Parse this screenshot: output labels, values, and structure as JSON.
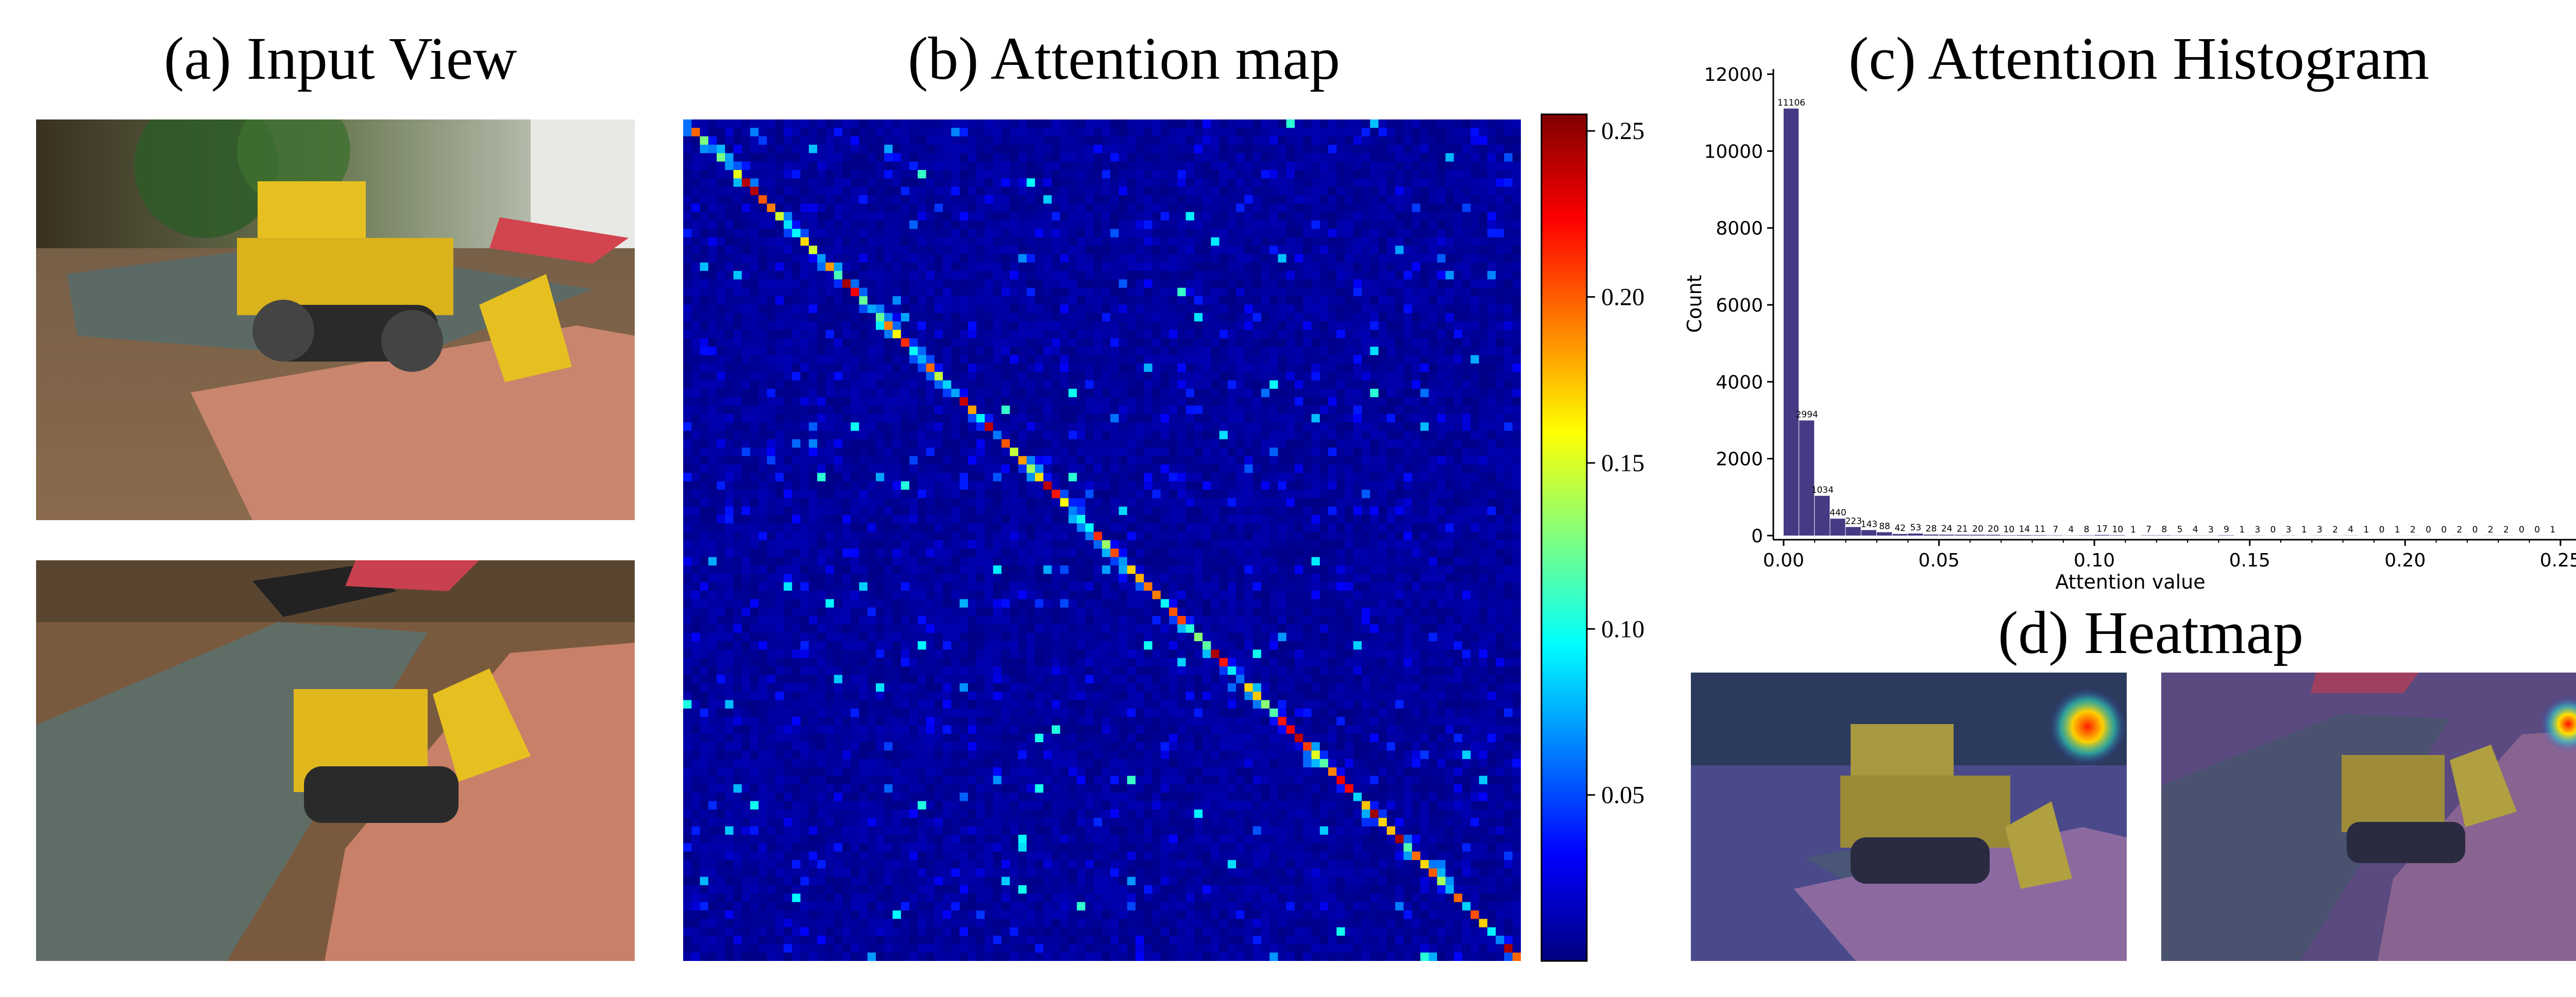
{
  "panels": {
    "a_title": "(a) Input View",
    "b_title": "(b) Attention map",
    "c_title": "(c) Attention Histogram",
    "d_title": "(d) Heatmap"
  },
  "images": {
    "input_view_1": "lego-bulldozer-on-table-side-view",
    "input_view_2": "lego-bulldozer-on-table-top-view",
    "heatmap_1": "heatmap-overlay-view-1",
    "heatmap_2": "heatmap-overlay-view-2"
  },
  "colormap": "jet",
  "chart_data": [
    {
      "type": "heatmap",
      "title": "(b) Attention map",
      "colorbar_ticks": [
        "0.05",
        "0.10",
        "0.15",
        "0.20",
        "0.25"
      ],
      "colorbar_range": [
        0,
        0.255
      ],
      "grid_size": 100,
      "diagonal": "strong",
      "colormap": "jet"
    },
    {
      "type": "bar",
      "title": "(c) Attention Histogram",
      "xlabel": "Attention value",
      "ylabel": "Count",
      "xlim": [
        0.0,
        0.255
      ],
      "ylim": [
        0,
        12000
      ],
      "xticks": [
        "0.00",
        "0.05",
        "0.10",
        "0.15",
        "0.20",
        "0.25"
      ],
      "yticks": [
        "0",
        "2000",
        "4000",
        "6000",
        "8000",
        "10000",
        "12000"
      ],
      "bin_width": 0.005,
      "bar_color": "#453b85",
      "counts": [
        11106,
        2994,
        1034,
        440,
        223,
        143,
        88,
        42,
        53,
        28,
        24,
        21,
        20,
        20,
        10,
        14,
        11,
        7,
        4,
        8,
        17,
        10,
        1,
        7,
        8,
        5,
        4,
        3,
        9,
        1,
        3,
        0,
        3,
        1,
        3,
        2,
        4,
        1,
        0,
        1,
        2,
        0,
        0,
        2,
        0,
        2,
        2,
        0,
        0,
        1
      ]
    }
  ]
}
